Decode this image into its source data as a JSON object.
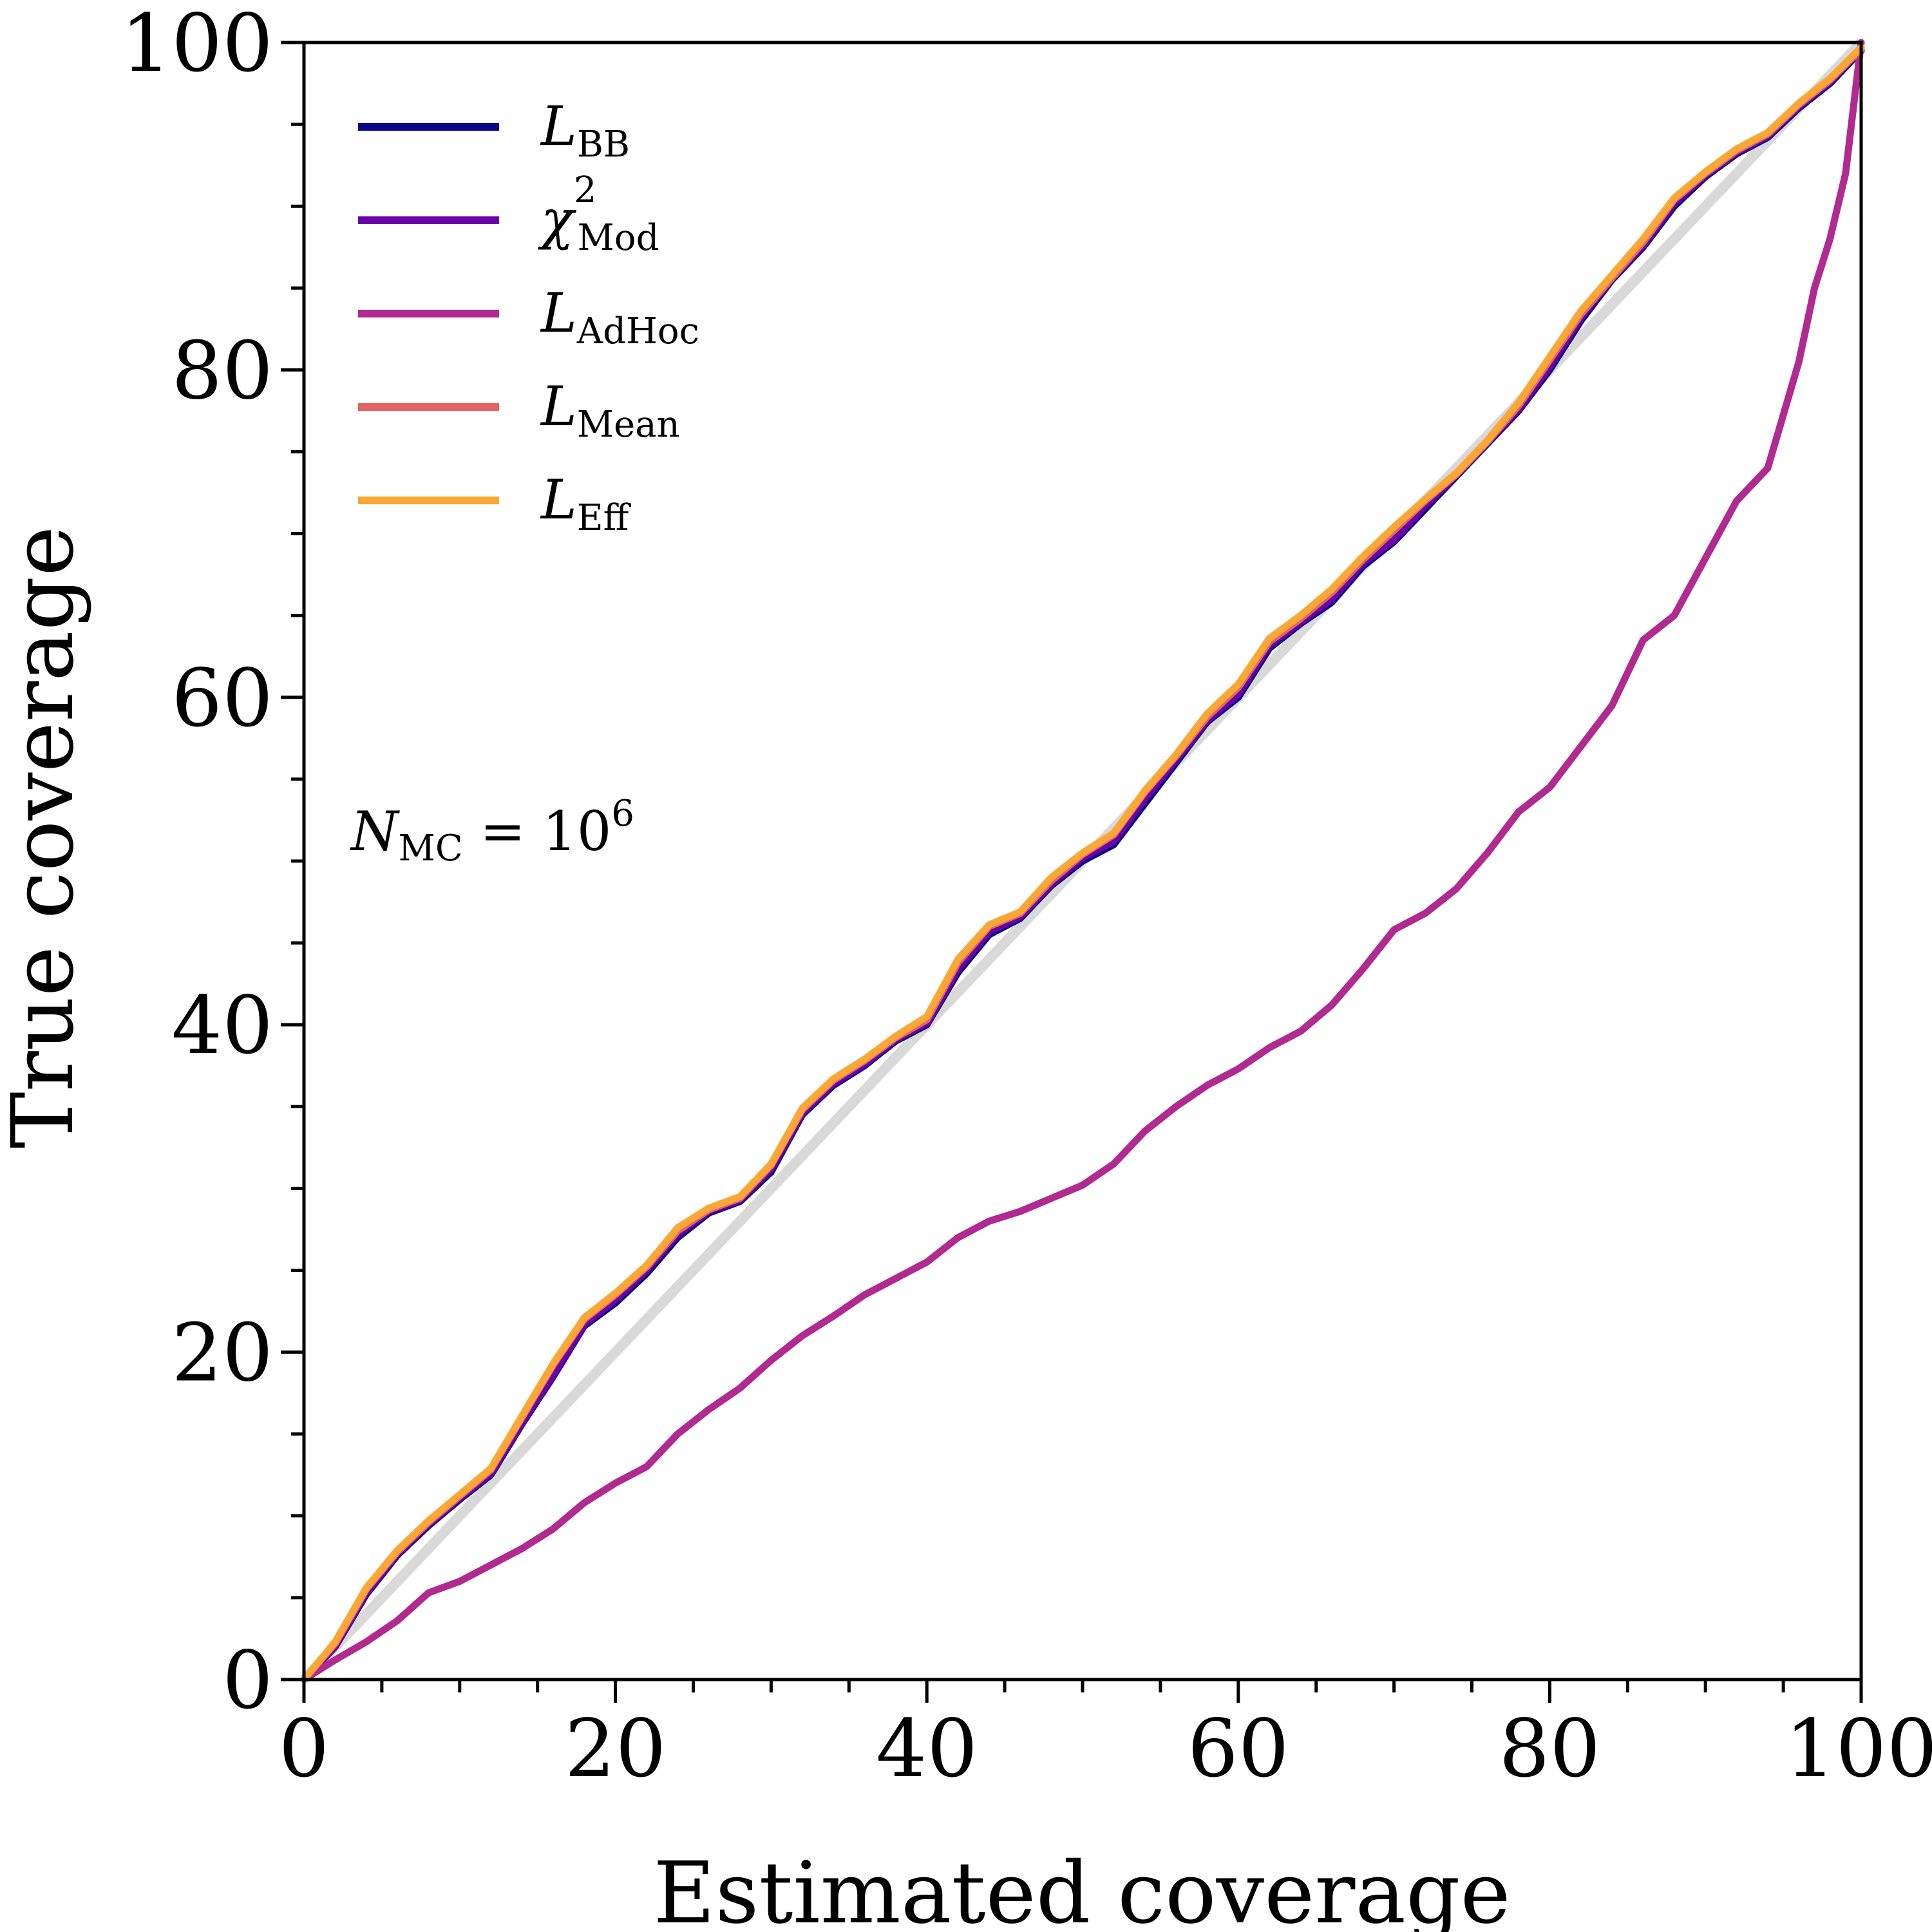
{
  "chart_data": {
    "type": "line",
    "xlabel": "Estimated coverage",
    "ylabel": "True coverage",
    "xlim": [
      0,
      100
    ],
    "ylim": [
      0,
      100
    ],
    "xticks": [
      0,
      20,
      40,
      60,
      80,
      100
    ],
    "yticks": [
      0,
      20,
      40,
      60,
      80,
      100
    ],
    "xtick_labels": [
      "0",
      "20",
      "40",
      "60",
      "80",
      "100"
    ],
    "ytick_labels": [
      "0",
      "20",
      "40",
      "60",
      "80",
      "100"
    ],
    "minor_tick_step": 5,
    "grid": false,
    "legend_position": "top-left",
    "annotation": {
      "main": "N",
      "sub": "MC",
      "rest": " = 10",
      "sup": "6"
    },
    "reference_line": {
      "x": [
        0,
        100
      ],
      "y": [
        0,
        100
      ],
      "color": "#d9d9d9"
    },
    "series": [
      {
        "name": "L",
        "name_sub": "BB",
        "name_sup": "",
        "color": "#0d0887",
        "x": [
          0,
          2,
          4,
          6,
          8,
          10,
          12,
          14,
          16,
          18,
          20,
          22,
          24,
          26,
          28,
          30,
          32,
          34,
          36,
          38,
          40,
          42,
          44,
          46,
          48,
          50,
          52,
          54,
          56,
          58,
          60,
          62,
          64,
          66,
          68,
          70,
          72,
          74,
          76,
          78,
          80,
          82,
          84,
          86,
          88,
          90,
          92,
          94,
          96,
          98,
          100
        ],
        "y": [
          0,
          2.0,
          5.2,
          7.6,
          9.4,
          11.0,
          12.5,
          15.6,
          18.5,
          21.6,
          23.0,
          24.8,
          27.0,
          28.5,
          29.2,
          31.0,
          34.5,
          36.3,
          37.5,
          39.0,
          40.0,
          43.2,
          45.5,
          46.5,
          48.5,
          50.0,
          51.0,
          53.5,
          56.0,
          58.5,
          60.0,
          63.0,
          64.5,
          65.8,
          68.0,
          69.5,
          71.5,
          73.5,
          75.5,
          77.5,
          80.0,
          83.0,
          85.5,
          87.5,
          90.0,
          91.8,
          93.2,
          94.2,
          96.0,
          97.5,
          99.5
        ]
      },
      {
        "name": "χ",
        "name_sub": "Mod",
        "name_sup": "2",
        "color": "#6a00a8",
        "x": [
          0,
          2,
          4,
          6,
          8,
          10,
          12,
          14,
          16,
          18,
          20,
          22,
          24,
          26,
          28,
          30,
          32,
          34,
          36,
          38,
          40,
          42,
          44,
          46,
          48,
          50,
          52,
          54,
          56,
          58,
          60,
          62,
          64,
          66,
          68,
          70,
          72,
          74,
          76,
          78,
          80,
          82,
          84,
          86,
          88,
          90,
          92,
          94,
          96,
          98,
          100
        ],
        "y": [
          0,
          2.0,
          5.3,
          7.7,
          9.5,
          11.1,
          12.6,
          15.7,
          18.6,
          21.7,
          23.2,
          25.0,
          27.2,
          28.6,
          29.3,
          31.2,
          34.6,
          36.4,
          37.6,
          39.1,
          40.1,
          43.4,
          45.7,
          46.6,
          48.6,
          50.2,
          51.2,
          53.8,
          56.2,
          58.6,
          60.2,
          63.2,
          64.6,
          66.0,
          68.2,
          69.6,
          71.7,
          73.6,
          75.6,
          77.6,
          80.2,
          83.2,
          85.6,
          87.6,
          90.2,
          91.9,
          93.3,
          94.3,
          96.1,
          97.6,
          99.6
        ]
      },
      {
        "name": "L",
        "name_sub": "AdHoc",
        "name_sup": "",
        "color": "#b12a90",
        "x": [
          0,
          2,
          4,
          6,
          8,
          10,
          12,
          14,
          16,
          18,
          20,
          22,
          24,
          26,
          28,
          30,
          32,
          34,
          36,
          38,
          40,
          42,
          44,
          46,
          48,
          50,
          52,
          54,
          56,
          58,
          60,
          62,
          64,
          66,
          68,
          70,
          72,
          74,
          76,
          78,
          80,
          82,
          84,
          86,
          88,
          90,
          92,
          94,
          96,
          97,
          98,
          99,
          99.5,
          100
        ],
        "y": [
          0,
          1.2,
          2.3,
          3.6,
          5.3,
          6.0,
          7.0,
          8.0,
          9.2,
          10.8,
          12.0,
          13.0,
          15.0,
          16.5,
          17.8,
          19.5,
          21.0,
          22.2,
          23.5,
          24.5,
          25.5,
          27.0,
          28.0,
          28.6,
          29.4,
          30.2,
          31.5,
          33.5,
          35.0,
          36.3,
          37.3,
          38.6,
          39.6,
          41.2,
          43.4,
          45.8,
          46.8,
          48.3,
          50.5,
          53.0,
          54.5,
          57.0,
          59.5,
          63.5,
          65.0,
          68.5,
          72.0,
          74.0,
          80.5,
          85.0,
          88.0,
          92.0,
          96.0,
          100.0
        ]
      },
      {
        "name": "L",
        "name_sub": "Mean",
        "name_sup": "",
        "color": "#e16462",
        "x": [
          0,
          2,
          4,
          6,
          8,
          10,
          12,
          14,
          16,
          18,
          20,
          22,
          24,
          26,
          28,
          30,
          32,
          34,
          36,
          38,
          40,
          42,
          44,
          46,
          48,
          50,
          52,
          54,
          56,
          58,
          60,
          62,
          64,
          66,
          68,
          70,
          72,
          74,
          76,
          78,
          80,
          82,
          84,
          86,
          88,
          90,
          92,
          94,
          96,
          98,
          100
        ],
        "y": [
          0,
          2.2,
          5.5,
          7.8,
          9.6,
          11.2,
          12.8,
          16.0,
          19.2,
          22.0,
          23.5,
          25.2,
          27.4,
          28.7,
          29.4,
          31.4,
          34.8,
          36.6,
          37.8,
          39.2,
          40.3,
          43.8,
          46.0,
          46.8,
          48.8,
          50.4,
          51.6,
          54.2,
          56.4,
          58.8,
          60.6,
          63.4,
          64.8,
          66.4,
          68.4,
          70.2,
          72.0,
          73.6,
          75.6,
          77.8,
          80.6,
          83.4,
          85.6,
          87.8,
          90.4,
          92.0,
          93.4,
          94.4,
          96.2,
          97.7,
          99.6
        ]
      },
      {
        "name": "L",
        "name_sub": "Eff",
        "name_sup": "",
        "color": "#fca636",
        "x": [
          0,
          2,
          4,
          6,
          8,
          10,
          12,
          14,
          16,
          18,
          20,
          22,
          24,
          26,
          28,
          30,
          32,
          34,
          36,
          38,
          40,
          42,
          44,
          46,
          48,
          50,
          52,
          54,
          56,
          58,
          60,
          62,
          64,
          66,
          68,
          70,
          72,
          74,
          76,
          78,
          80,
          82,
          84,
          86,
          88,
          90,
          92,
          94,
          96,
          98,
          100
        ],
        "y": [
          0,
          2.3,
          5.6,
          7.9,
          9.7,
          11.3,
          12.9,
          16.1,
          19.3,
          22.1,
          23.6,
          25.3,
          27.6,
          28.8,
          29.5,
          31.5,
          34.9,
          36.7,
          37.9,
          39.3,
          40.5,
          44.0,
          46.1,
          46.9,
          49.0,
          50.5,
          51.7,
          54.3,
          56.5,
          59.0,
          60.8,
          63.6,
          65.0,
          66.6,
          68.6,
          70.4,
          72.1,
          73.7,
          75.7,
          78.0,
          80.8,
          83.6,
          85.8,
          88.0,
          90.5,
          92.1,
          93.5,
          94.5,
          96.3,
          97.8,
          99.7
        ]
      }
    ]
  }
}
